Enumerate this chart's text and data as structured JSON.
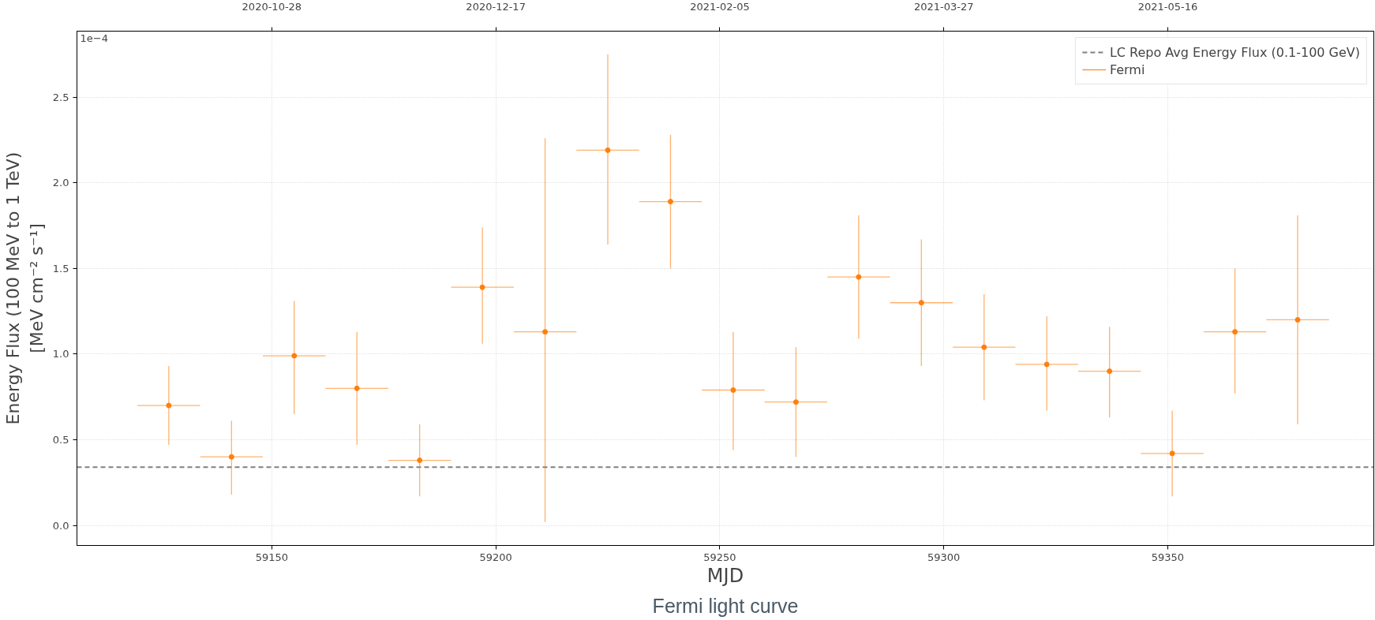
{
  "chart_data": {
    "type": "scatter",
    "title": "Fermi light curve",
    "xlabel": "MJD",
    "ylabel": "Energy Flux (100 MeV to 1 TeV)\n[MeV cm⁻² s⁻¹]",
    "annotations": [
      "1e−4"
    ],
    "x": [
      59127,
      59141,
      59155,
      59169,
      59183,
      59197,
      59211,
      59225,
      59239,
      59253,
      59267,
      59281,
      59295,
      59309,
      59323,
      59337,
      59351,
      59365,
      59379
    ],
    "series": [
      {
        "name": "Fermi",
        "color": "#ff7f0e",
        "values": [
          0.7,
          0.4,
          0.99,
          0.8,
          0.38,
          1.39,
          1.13,
          2.19,
          1.89,
          0.79,
          0.72,
          1.45,
          1.3,
          1.04,
          0.94,
          0.9,
          0.42,
          1.13,
          1.2
        ],
        "errors": [
          [
            0.47,
            0.93
          ],
          [
            0.18,
            0.61
          ],
          [
            0.65,
            1.31
          ],
          [
            0.47,
            1.13
          ],
          [
            0.17,
            0.59
          ],
          [
            1.06,
            1.74
          ],
          [
            0.02,
            2.26
          ],
          [
            1.64,
            2.75
          ],
          [
            1.5,
            2.28
          ],
          [
            0.44,
            1.13
          ],
          [
            0.4,
            1.04
          ],
          [
            1.09,
            1.81
          ],
          [
            0.93,
            1.67
          ],
          [
            0.73,
            1.35
          ],
          [
            0.67,
            1.22
          ],
          [
            0.63,
            1.16
          ],
          [
            0.17,
            0.67
          ],
          [
            0.77,
            1.5
          ],
          [
            0.59,
            1.81
          ]
        ],
        "xerrors": [
          7,
          7,
          7,
          7,
          7,
          7,
          7,
          7,
          7,
          7,
          7,
          7,
          7,
          7,
          7,
          7,
          7,
          7,
          7
        ]
      }
    ],
    "ref_lines": [
      {
        "axis": "y",
        "value": 0.34,
        "label": "LC Repo Avg Energy Flux (0.1-100 GeV)",
        "color": "#808080",
        "line_style": "dashed"
      }
    ],
    "xlim": [
      59106.5,
      59396
    ],
    "xticks": [
      59150,
      59200,
      59250,
      59300,
      59350
    ],
    "x2lim": [
      "2020-09-14T12:00",
      "2021-07-01"
    ],
    "x2ticks": [
      "2020-10-28",
      "2020-12-17",
      "2021-02-05",
      "2021-03-27",
      "2021-05-16"
    ],
    "ylim": [
      -0.117,
      2.885
    ],
    "yticks": [
      {
        "value": 0,
        "label": "0.0"
      },
      0.5,
      {
        "value": 1,
        "label": "1.0"
      },
      1.5,
      {
        "value": 2,
        "label": "2.0"
      },
      2.5
    ],
    "grid": true,
    "legend": "top right",
    "marker": "circle"
  }
}
